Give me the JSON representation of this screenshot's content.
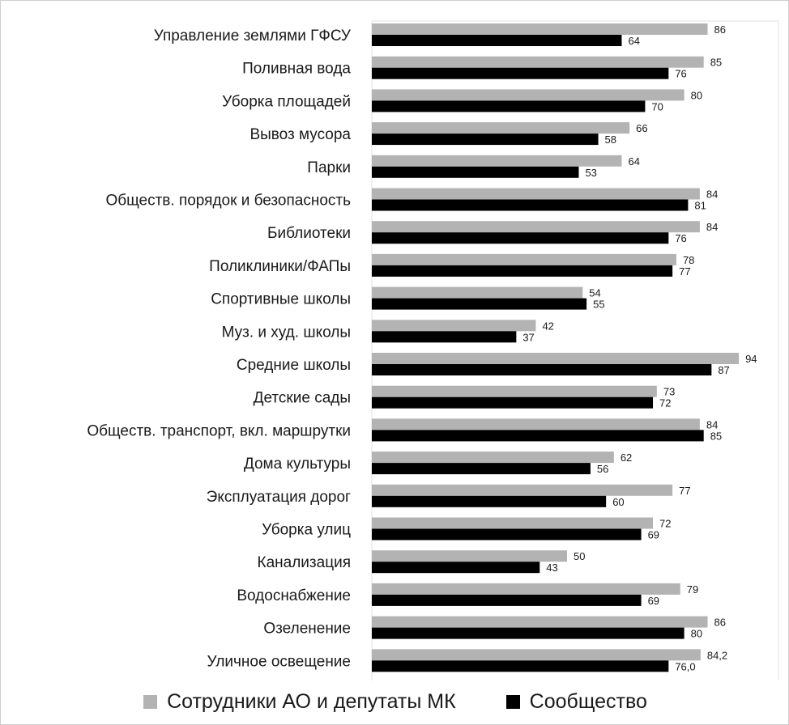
{
  "chart_data": {
    "type": "bar",
    "orientation": "horizontal",
    "categories": [
      "Управление землями ГФСУ",
      "Поливная вода",
      "Уборка площадей",
      "Вывоз мусора",
      "Парки",
      "Обществ. порядок и безопасность",
      "Библиотеки",
      "Поликлиники/ФАПы",
      "Спортивные школы",
      "Муз. и худ. школы",
      "Средние школы",
      "Детские сады",
      "Обществ. транспорт, вкл. маршрутки",
      "Дома культуры",
      "Эксплуатация дорог",
      "Уборка улиц",
      "Канализация",
      "Водоснабжение",
      "Озеленение",
      "Уличное освещение"
    ],
    "series": [
      {
        "name": "Сотрудники АО и депутаты МК",
        "color": "#b3b3b3",
        "values": [
          86,
          85,
          80,
          66,
          64,
          84,
          84,
          78,
          54,
          42,
          94,
          73,
          84,
          62,
          77,
          72,
          50,
          79,
          86,
          84.2
        ],
        "labels": [
          "86",
          "85",
          "80",
          "66",
          "64",
          "84",
          "84",
          "78",
          "54",
          "42",
          "94",
          "73",
          "84",
          "62",
          "77",
          "72",
          "50",
          "79",
          "86",
          "84,2"
        ]
      },
      {
        "name": "Сообщество",
        "color": "#000000",
        "values": [
          64,
          76,
          70,
          58,
          53,
          81,
          76,
          77,
          55,
          37,
          87,
          72,
          85,
          56,
          60,
          69,
          43,
          69,
          80,
          76.0
        ],
        "labels": [
          "64",
          "76",
          "70",
          "58",
          "53",
          "81",
          "76",
          "77",
          "55",
          "37",
          "87",
          "72",
          "85",
          "56",
          "60",
          "69",
          "43",
          "69",
          "80",
          "76,0"
        ]
      }
    ],
    "xlim": [
      0,
      100
    ],
    "grid": false,
    "legend_position": "bottom"
  }
}
